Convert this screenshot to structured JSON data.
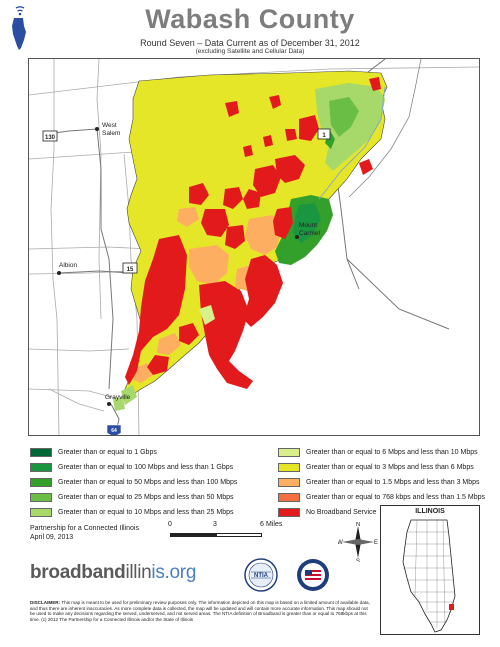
{
  "header": {
    "title": "Wabash County",
    "subtitle": "Round Seven – Data Current as of December 31, 2012",
    "subtitle_note": "(excluding Satellite and Cellular Data)"
  },
  "map": {
    "places": {
      "west_salem_line1": "West",
      "west_salem_line2": "Salem",
      "mount_carmel_line1": "Mount",
      "mount_carmel_line2": "Carmel",
      "albion": "Albion",
      "grayville": "Grayville"
    },
    "roads": {
      "r130": "130",
      "r1": "1",
      "r15": "15",
      "r64": "64"
    }
  },
  "legend": {
    "colors": {
      "gbps": "#006837",
      "m100": "#1a9641",
      "m50": "#33a02c",
      "m25": "#6abd45",
      "m10": "#a6d96a",
      "m6": "#d9ef8b",
      "m3": "#e6e629",
      "m1_5": "#fdae61",
      "k768": "#f46d43",
      "none": "#e31a1c"
    },
    "items": [
      {
        "label": "Greater than or equal to 1 Gbps"
      },
      {
        "label": "Greater than or equal to 100 Mbps and less than 1 Gbps"
      },
      {
        "label": "Greater than or equal to 50 Mbps and less than 100 Mbps"
      },
      {
        "label": "Greater than or equal to 25 Mbps and less than 50 Mbps"
      },
      {
        "label": "Greater than or equal to 10 Mbps and less than 25 Mbps"
      },
      {
        "label": "Greater than or equal to 6 Mbps and less than 10 Mbps"
      },
      {
        "label": "Greater than or equal to 3 Mbps and less than 6 Mbps"
      },
      {
        "label": "Greater than or equal to 1.5 Mbps and less than 3 Mbps"
      },
      {
        "label": "Greater than or equal to 768 kbps and less than 1.5 Mbps"
      },
      {
        "label": "No Broadband Service"
      }
    ]
  },
  "credit": {
    "line1": "Partnership for a Connected Illinois",
    "line2": "April 09, 2013"
  },
  "scale": {
    "ticks": [
      "0",
      "3",
      "6"
    ],
    "unit": "Miles"
  },
  "compass": {
    "n": "N",
    "s": "S",
    "e": "E",
    "w": "W"
  },
  "inset": {
    "title": "ILLINOIS"
  },
  "brand": {
    "part1": "broadband",
    "part2": "illin",
    "part3": "is",
    "part4": ".org"
  },
  "seals": {
    "ntia": "NTIA"
  },
  "disclaimer": {
    "lead": "DISCLAIMER:",
    "text": "This map is meant to be used for preliminary review purposes only. The information depicted on this map is based on a limited amount of available data, and thus there are inherent inaccuracies. As more complete data is collected, the map will be updated and will contain more accurate information. This map should not be used to make any decisions regarding the served, underserved, and not served areas. The NTIA definition of Broadband is greater than or equal to 768kbps at this time. (c) 2012 The Partnership for a Connected Illinois and/or the State of Illinois"
  }
}
